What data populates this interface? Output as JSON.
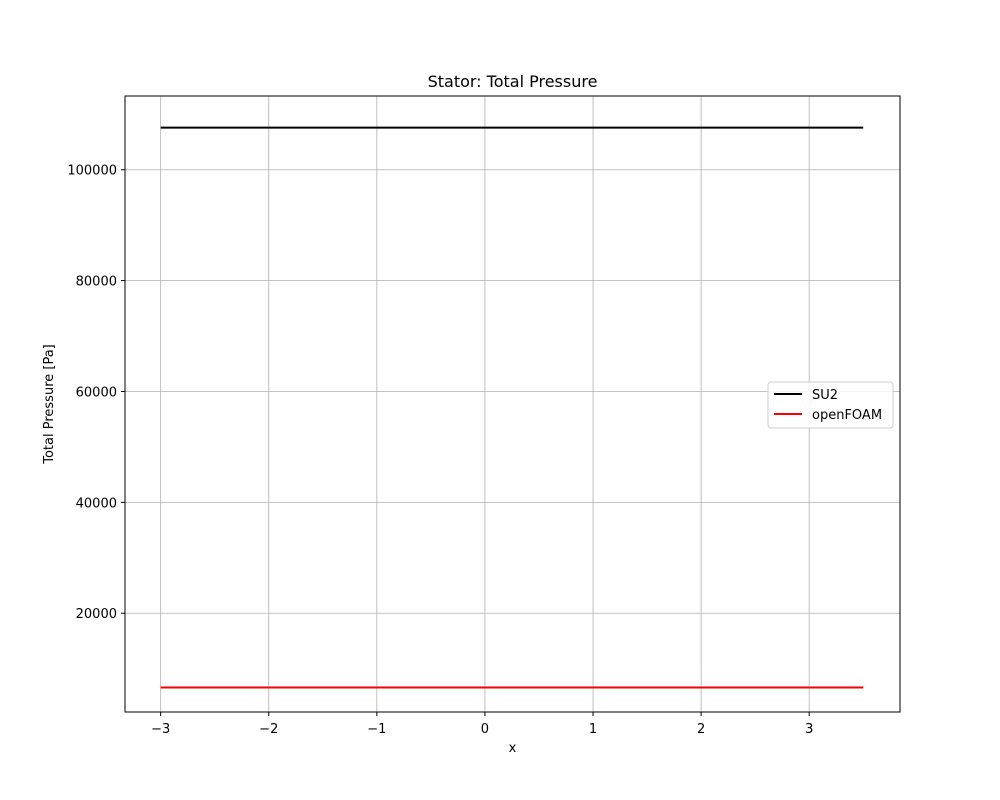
{
  "chart_data": {
    "type": "line",
    "title": "Stator: Total Pressure",
    "xlabel": "x",
    "ylabel": "Total Pressure [Pa]",
    "xlim": [
      -3.33,
      3.84
    ],
    "ylim": [
      2180,
      113300
    ],
    "xticks": [
      -3,
      -2,
      -1,
      0,
      1,
      2,
      3
    ],
    "xtick_labels": [
      "−3",
      "−2",
      "−1",
      "0",
      "1",
      "2",
      "3"
    ],
    "yticks": [
      20000,
      40000,
      60000,
      80000,
      100000
    ],
    "ytick_labels": [
      "20000",
      "40000",
      "60000",
      "80000",
      "100000"
    ],
    "grid": true,
    "legend_position": "center-right",
    "series": [
      {
        "name": "SU2",
        "color": "#000000",
        "x": [
          -3,
          3.5
        ],
        "y": [
          107600,
          107600
        ]
      },
      {
        "name": "openFOAM",
        "color": "#ff0000",
        "x": [
          -3,
          3.5
        ],
        "y": [
          6600,
          6600
        ]
      }
    ]
  }
}
